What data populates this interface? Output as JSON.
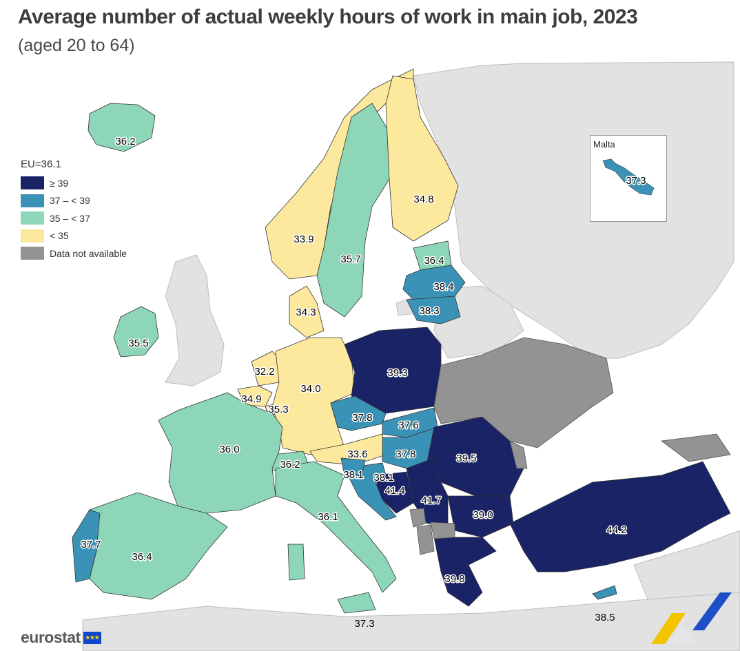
{
  "title": "Average number of actual weekly hours of work in main job, 2023",
  "subtitle": "(aged 20 to 64)",
  "legend": {
    "title": "EU=36.1",
    "items": [
      {
        "label": "≥ 39",
        "color": "#1a2366"
      },
      {
        "label": "37 – < 39",
        "color": "#3a93b6"
      },
      {
        "label": "35 – < 37",
        "color": "#8ed6b8"
      },
      {
        "label": "< 35",
        "color": "#fde99e"
      },
      {
        "label": "Data not available",
        "color": "#939393"
      }
    ]
  },
  "inset": {
    "label": "Malta",
    "value": "37.3"
  },
  "logo": "eurostat",
  "colors": {
    "non_data": "#e2e2e2",
    "sea": "#ffffff",
    "border": "#3a3a3a"
  },
  "chart_data": {
    "type": "choropleth",
    "units": "hours per week",
    "regions": [
      {
        "country": "Iceland",
        "value": 36.2,
        "class": "35 – < 37"
      },
      {
        "country": "Ireland",
        "value": 35.5,
        "class": "35 – < 37"
      },
      {
        "country": "Norway",
        "value": 33.9,
        "class": "< 35"
      },
      {
        "country": "Sweden",
        "value": 35.7,
        "class": "35 – < 37"
      },
      {
        "country": "Finland",
        "value": 34.8,
        "class": "< 35"
      },
      {
        "country": "Estonia",
        "value": 36.4,
        "class": "35 – < 37"
      },
      {
        "country": "Latvia",
        "value": 38.4,
        "class": "37 – < 39"
      },
      {
        "country": "Lithuania",
        "value": 38.3,
        "class": "37 – < 39"
      },
      {
        "country": "Denmark",
        "value": 34.3,
        "class": "< 35"
      },
      {
        "country": "Netherlands",
        "value": 32.2,
        "class": "< 35"
      },
      {
        "country": "Belgium",
        "value": 34.9,
        "class": "< 35"
      },
      {
        "country": "Luxembourg",
        "value": 35.3,
        "class": "35 – < 37"
      },
      {
        "country": "Germany",
        "value": 34.0,
        "class": "< 35"
      },
      {
        "country": "Poland",
        "value": 39.3,
        "class": "≥ 39"
      },
      {
        "country": "Czechia",
        "value": 37.8,
        "class": "37 – < 39"
      },
      {
        "country": "Slovakia",
        "value": 37.6,
        "class": "37 – < 39"
      },
      {
        "country": "Austria",
        "value": 33.6,
        "class": "< 35"
      },
      {
        "country": "Hungary",
        "value": 37.8,
        "class": "37 – < 39"
      },
      {
        "country": "Switzerland",
        "value": 36.2,
        "class": "35 – < 37"
      },
      {
        "country": "France",
        "value": 36.0,
        "class": "35 – < 37"
      },
      {
        "country": "Slovenia",
        "value": 38.1,
        "class": "37 – < 39"
      },
      {
        "country": "Croatia",
        "value": 38.1,
        "class": "37 – < 39"
      },
      {
        "country": "Bosnia and Herzegovina",
        "value": 41.4,
        "class": "≥ 39"
      },
      {
        "country": "Serbia",
        "value": 41.7,
        "class": "≥ 39"
      },
      {
        "country": "Romania",
        "value": 39.5,
        "class": "≥ 39"
      },
      {
        "country": "Bulgaria",
        "value": 39.0,
        "class": "≥ 39"
      },
      {
        "country": "Italy",
        "value": 36.1,
        "class": "35 – < 37"
      },
      {
        "country": "Portugal",
        "value": 37.7,
        "class": "37 – < 39"
      },
      {
        "country": "Spain",
        "value": 36.4,
        "class": "35 – < 37"
      },
      {
        "country": "Greece",
        "value": 39.8,
        "class": "≥ 39"
      },
      {
        "country": "Türkiye",
        "value": 44.2,
        "class": "≥ 39"
      },
      {
        "country": "Cyprus",
        "value": 38.5,
        "class": "37 – < 39"
      },
      {
        "country": "Malta",
        "value": 37.3,
        "class": "37 – < 39"
      },
      {
        "country": "Ukraine",
        "value": null,
        "class": "Data not available"
      },
      {
        "country": "Moldova",
        "value": null,
        "class": "Data not available"
      },
      {
        "country": "Montenegro",
        "value": null,
        "class": "Data not available"
      },
      {
        "country": "Albania",
        "value": null,
        "class": "Data not available"
      },
      {
        "country": "North Macedonia",
        "value": null,
        "class": "Data not available"
      },
      {
        "country": "Georgia",
        "value": null,
        "class": "Data not available"
      }
    ],
    "labels": {
      "Iceland": "36.2",
      "Ireland": "35.5",
      "Norway": "33.9",
      "Sweden": "35.7",
      "Finland": "34.8",
      "Estonia": "36.4",
      "Latvia": "38.4",
      "Lithuania": "38.3",
      "Denmark": "34.3",
      "Netherlands": "32.2",
      "Belgium": "34.9",
      "Luxembourg": "35.3",
      "Germany": "34.0",
      "Poland": "39.3",
      "Czechia": "37.8",
      "Slovakia": "37.6",
      "Austria": "33.6",
      "Hungary": "37.8",
      "Switzerland": "36.2",
      "France": "36.0",
      "Slovenia": "38.1",
      "Croatia": "38.1",
      "Bosnia": "41.4",
      "Serbia": "41.7",
      "Romania": "39.5",
      "Bulgaria": "39.0",
      "Italy": "36.1",
      "Portugal": "37.7",
      "Spain": "36.4",
      "Greece": "39.8",
      "Turkiye": "44.2",
      "Cyprus": "38.5",
      "Sicily": "37.3"
    }
  }
}
